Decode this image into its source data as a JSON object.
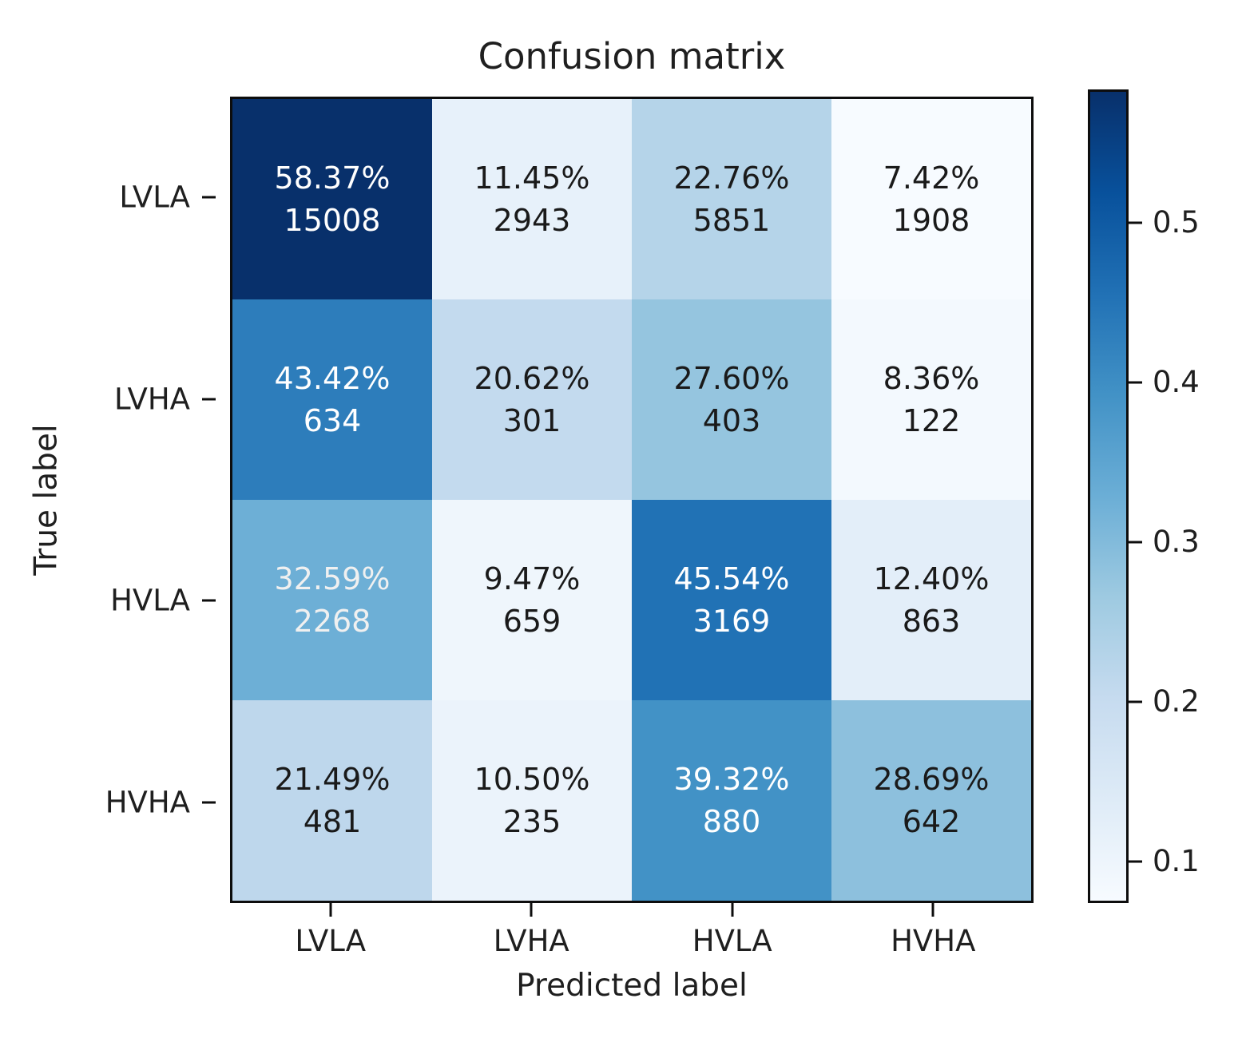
{
  "chart_data": {
    "type": "heatmap",
    "title": "Confusion matrix",
    "xlabel": "Predicted label",
    "ylabel": "True label",
    "row_labels": [
      "LVLA",
      "LVHA",
      "HVLA",
      "HVHA"
    ],
    "col_labels": [
      "LVLA",
      "LVHA",
      "HVLA",
      "HVHA"
    ],
    "cells": [
      [
        {
          "pct": "58.37%",
          "count": "15008",
          "value": 0.5837,
          "bg": "#08306b",
          "fg": "#ffffff"
        },
        {
          "pct": "11.45%",
          "count": "2943",
          "value": 0.1145,
          "bg": "#e7f1fa",
          "fg": "#1a1a1a"
        },
        {
          "pct": "22.76%",
          "count": "5851",
          "value": 0.2276,
          "bg": "#b5d4e9",
          "fg": "#1a1a1a"
        },
        {
          "pct": "7.42%",
          "count": "1908",
          "value": 0.0742,
          "bg": "#f7fbff",
          "fg": "#1a1a1a"
        }
      ],
      [
        {
          "pct": "43.42%",
          "count": "634",
          "value": 0.4342,
          "bg": "#2d7dbb",
          "fg": "#ffffff"
        },
        {
          "pct": "20.62%",
          "count": "301",
          "value": 0.2062,
          "bg": "#c3daee",
          "fg": "#1a1a1a"
        },
        {
          "pct": "27.60%",
          "count": "403",
          "value": 0.276,
          "bg": "#95c5df",
          "fg": "#1a1a1a"
        },
        {
          "pct": "8.36%",
          "count": "122",
          "value": 0.0836,
          "bg": "#f3f9fe",
          "fg": "#1a1a1a"
        }
      ],
      [
        {
          "pct": "32.59%",
          "count": "2268",
          "value": 0.3259,
          "bg": "#6dafd6",
          "fg": "#f0f0f0"
        },
        {
          "pct": "9.47%",
          "count": "659",
          "value": 0.0947,
          "bg": "#eff6fc",
          "fg": "#1a1a1a"
        },
        {
          "pct": "45.54%",
          "count": "3169",
          "value": 0.4554,
          "bg": "#2172b5",
          "fg": "#ffffff"
        },
        {
          "pct": "12.40%",
          "count": "863",
          "value": 0.124,
          "bg": "#e3eef9",
          "fg": "#1a1a1a"
        }
      ],
      [
        {
          "pct": "21.49%",
          "count": "481",
          "value": 0.2149,
          "bg": "#bed7ec",
          "fg": "#1a1a1a"
        },
        {
          "pct": "10.50%",
          "count": "235",
          "value": 0.105,
          "bg": "#ebf3fb",
          "fg": "#1a1a1a"
        },
        {
          "pct": "39.32%",
          "count": "880",
          "value": 0.3932,
          "bg": "#4292c6",
          "fg": "#ffffff"
        },
        {
          "pct": "28.69%",
          "count": "642",
          "value": 0.2869,
          "bg": "#8dc0dd",
          "fg": "#1a1a1a"
        }
      ]
    ],
    "colorbar": {
      "colormap": "Blues",
      "vmin": 0.0742,
      "vmax": 0.5837,
      "tick_labels": [
        "0.1",
        "0.2",
        "0.3",
        "0.4",
        "0.5"
      ],
      "tick_values": [
        0.1,
        0.2,
        0.3,
        0.4,
        0.5
      ],
      "gradient_stops": [
        "#f7fbff",
        "#deebf7",
        "#c6dbef",
        "#9ecae1",
        "#6baed6",
        "#4292c6",
        "#2171b5",
        "#08519c",
        "#08306b"
      ]
    },
    "legend": "none",
    "grid": false
  },
  "colors": {
    "background": "#ffffff",
    "spine": "#0d0d0d",
    "text": "#1f1f1f"
  }
}
